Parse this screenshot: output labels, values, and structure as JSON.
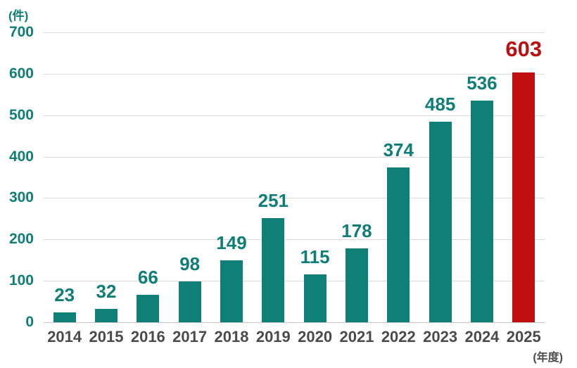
{
  "chart_data": {
    "type": "bar",
    "title": "",
    "unit_label": "(件)",
    "xaxis_label": "(年度)",
    "categories": [
      "2014",
      "2015",
      "2016",
      "2017",
      "2018",
      "2019",
      "2020",
      "2021",
      "2022",
      "2023",
      "2024",
      "2025"
    ],
    "values": [
      23,
      32,
      66,
      98,
      149,
      251,
      115,
      178,
      374,
      485,
      536,
      603
    ],
    "highlight_index": 11,
    "ylim": [
      0,
      700
    ],
    "ytick_step": 100,
    "yticks": [
      "0",
      "100",
      "200",
      "300",
      "400",
      "500",
      "600",
      "700"
    ],
    "grid": true,
    "legend": null,
    "colors": {
      "bar": "#0E8078",
      "highlight_bar": "#C00D0D",
      "value_label": "#0E7E77",
      "highlight_value_label": "#B91111",
      "axis_text": "#4A4A4A",
      "gridline": "#D9D9D9"
    }
  }
}
